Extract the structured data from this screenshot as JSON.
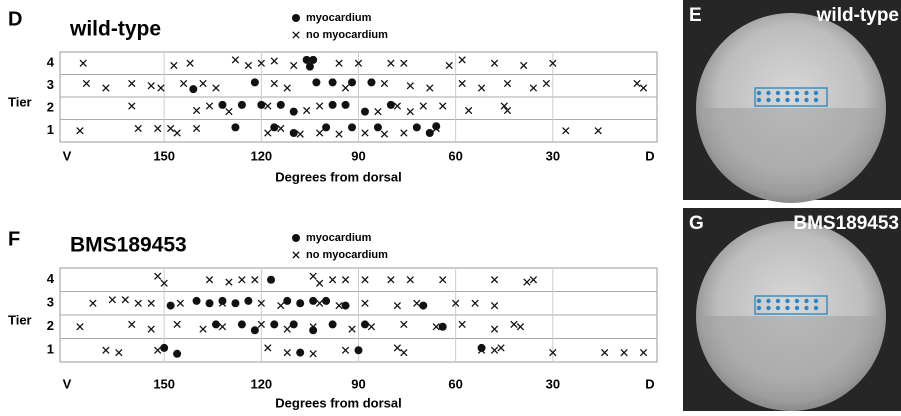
{
  "chart_data": [
    {
      "type": "scatter",
      "panel": "D",
      "title": "wild-type",
      "xlabel": "Degrees from dorsal",
      "ylabel": "Tier",
      "xlim": [
        180,
        0
      ],
      "xticks": [
        {
          "value": 180,
          "label": "V"
        },
        150,
        120,
        90,
        60,
        30,
        {
          "value": 0,
          "label": "D"
        }
      ],
      "ylim": [
        0.5,
        4.5
      ],
      "yticks": [
        1,
        2,
        3,
        4
      ],
      "grid": true,
      "series": [
        {
          "name": "myocardium",
          "marker": "circle",
          "color": "#111111",
          "x": [
            106,
            104,
            105,
            141,
            122,
            103,
            98,
            92,
            86,
            132,
            126,
            120,
            114,
            110,
            98,
            94,
            88,
            80,
            128,
            116,
            110,
            100,
            92,
            84,
            72,
            68,
            66
          ],
          "y": [
            4.15,
            4.15,
            3.85,
            2.85,
            3.15,
            3.15,
            3.15,
            3.15,
            3.15,
            2.15,
            2.15,
            2.15,
            2.15,
            1.85,
            2.15,
            2.15,
            1.85,
            2.15,
            1.15,
            1.15,
            0.9,
            1.15,
            1.15,
            1.15,
            1.15,
            0.9,
            1.2
          ]
        },
        {
          "name": "no myocardium",
          "marker": "x",
          "color": "#111111",
          "x": [
            175,
            147,
            142,
            128,
            124,
            120,
            116,
            110,
            96,
            90,
            80,
            76,
            62,
            58,
            48,
            39,
            30,
            174,
            168,
            160,
            154,
            151,
            144,
            138,
            134,
            116,
            112,
            94,
            82,
            74,
            68,
            58,
            52,
            44,
            36,
            32,
            4,
            2,
            160,
            140,
            136,
            130,
            118,
            106,
            102,
            84,
            78,
            74,
            70,
            64,
            56,
            45,
            44,
            176,
            158,
            152,
            148,
            146,
            140,
            118,
            114,
            108,
            102,
            96,
            88,
            82,
            76,
            66,
            26,
            16
          ],
          "y": [
            4.0,
            3.9,
            4.0,
            4.15,
            3.9,
            4.0,
            4.1,
            3.9,
            4.0,
            4.0,
            4.0,
            4.0,
            3.9,
            4.15,
            4.0,
            3.9,
            4.0,
            3.1,
            2.9,
            3.1,
            3.0,
            2.9,
            3.1,
            3.1,
            2.9,
            3.1,
            2.9,
            2.9,
            3.1,
            3.0,
            2.9,
            3.1,
            2.9,
            3.1,
            2.9,
            3.1,
            3.1,
            2.9,
            2.1,
            1.9,
            2.1,
            1.85,
            2.1,
            1.9,
            2.1,
            1.85,
            2.1,
            1.85,
            2.1,
            2.1,
            1.9,
            2.1,
            1.9,
            1.0,
            1.1,
            1.1,
            1.1,
            0.9,
            1.1,
            0.9,
            1.1,
            0.85,
            0.9,
            0.85,
            0.9,
            0.85,
            0.9,
            1.1,
            1.0,
            1.0
          ]
        }
      ]
    },
    {
      "type": "scatter",
      "panel": "F",
      "title": "BMS189453",
      "xlabel": "Degrees from dorsal",
      "ylabel": "Tier",
      "xlim": [
        180,
        0
      ],
      "xticks": [
        {
          "value": 180,
          "label": "V"
        },
        150,
        120,
        90,
        60,
        30,
        {
          "value": 0,
          "label": "D"
        }
      ],
      "ylim": [
        0.5,
        4.5
      ],
      "yticks": [
        1,
        2,
        3,
        4
      ],
      "grid": true,
      "series": [
        {
          "name": "myocardium",
          "marker": "circle",
          "color": "#111111",
          "x": [
            117,
            140,
            136,
            132,
            128,
            124,
            112,
            108,
            104,
            100,
            94,
            148,
            134,
            126,
            122,
            116,
            110,
            104,
            98,
            88,
            70,
            64,
            150,
            146,
            108,
            90,
            52
          ],
          "y": [
            4.0,
            3.1,
            3.0,
            3.1,
            3.0,
            3.1,
            3.1,
            3.0,
            3.1,
            3.1,
            2.9,
            2.9,
            2.1,
            2.1,
            1.85,
            2.1,
            2.1,
            1.85,
            2.1,
            2.1,
            2.9,
            2.0,
            1.1,
            0.85,
            0.9,
            1.0,
            1.1
          ]
        },
        {
          "name": "no myocardium",
          "marker": "x",
          "color": "#111111",
          "x": [
            152,
            150,
            136,
            130,
            126,
            122,
            104,
            102,
            98,
            94,
            88,
            80,
            74,
            64,
            48,
            38,
            36,
            172,
            166,
            162,
            158,
            154,
            145,
            132,
            120,
            114,
            102,
            96,
            88,
            78,
            72,
            60,
            54,
            48,
            176,
            160,
            154,
            146,
            138,
            132,
            120,
            112,
            104,
            92,
            86,
            76,
            66,
            58,
            48,
            42,
            40,
            168,
            164,
            152,
            118,
            112,
            104,
            94,
            78,
            76,
            52,
            48,
            46,
            30,
            14,
            8,
            2
          ],
          "y": [
            4.15,
            3.85,
            4.0,
            3.9,
            4.0,
            4.0,
            4.15,
            3.85,
            4.0,
            4.0,
            4.0,
            4.0,
            4.0,
            4.0,
            4.0,
            3.9,
            4.0,
            3.0,
            3.15,
            3.15,
            3.0,
            3.0,
            3.0,
            3.0,
            3.0,
            2.9,
            3.0,
            2.9,
            3.0,
            2.9,
            3.0,
            3.0,
            3.0,
            2.9,
            2.0,
            2.1,
            1.9,
            2.1,
            1.9,
            2.0,
            2.1,
            1.9,
            2.0,
            1.9,
            2.0,
            2.1,
            2.0,
            2.1,
            1.9,
            2.1,
            2.0,
            1.0,
            0.9,
            1.0,
            1.1,
            0.9,
            0.85,
            1.0,
            1.1,
            0.9,
            1.0,
            1.0,
            1.1,
            0.9,
            0.9,
            0.9,
            0.9
          ]
        }
      ]
    }
  ],
  "images": [
    {
      "panel": "E",
      "label": "wild-type"
    },
    {
      "panel": "G",
      "label": "BMS189453"
    }
  ]
}
